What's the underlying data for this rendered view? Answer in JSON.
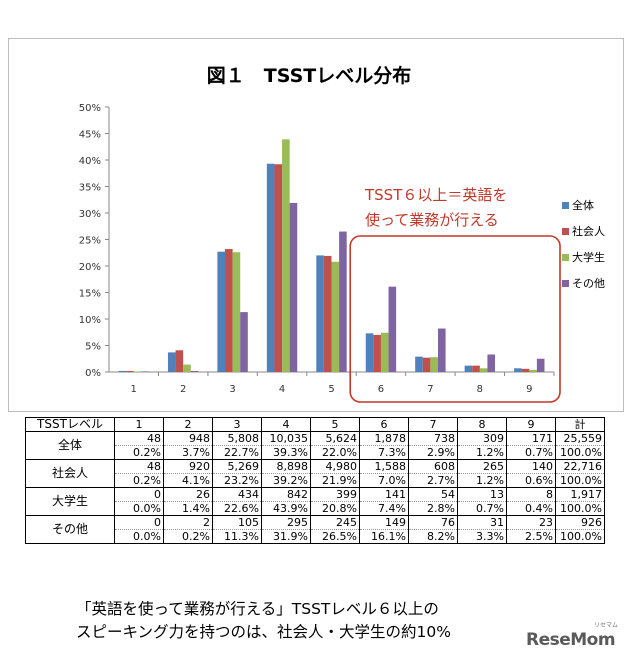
{
  "chart_data": {
    "type": "bar",
    "title": "図１　TSSTレベル分布",
    "categories": [
      "1",
      "2",
      "3",
      "4",
      "5",
      "6",
      "7",
      "8",
      "9"
    ],
    "series": [
      {
        "name": "全体",
        "color": "#4f81bd",
        "values": [
          0.2,
          3.7,
          22.7,
          39.3,
          22.0,
          7.3,
          2.9,
          1.2,
          0.7
        ]
      },
      {
        "name": "社会人",
        "color": "#c0504d",
        "values": [
          0.2,
          4.1,
          23.2,
          39.2,
          21.9,
          7.0,
          2.7,
          1.2,
          0.6
        ]
      },
      {
        "name": "大学生",
        "color": "#9bbb59",
        "values": [
          0.0,
          1.4,
          22.6,
          43.9,
          20.8,
          7.4,
          2.8,
          0.7,
          0.4
        ]
      },
      {
        "name": "その他",
        "color": "#8064a2",
        "values": [
          0.0,
          0.2,
          11.3,
          31.9,
          26.5,
          16.1,
          8.2,
          3.3,
          2.5
        ]
      }
    ],
    "y_ticks": [
      "0%",
      "5%",
      "10%",
      "15%",
      "20%",
      "25%",
      "30%",
      "35%",
      "40%",
      "45%",
      "50%"
    ],
    "ylim": [
      0,
      50
    ],
    "legend_position": "right",
    "annotation": {
      "line1": "TSST６以上＝英語を",
      "line2": "使って業務が行える",
      "color": "#c0392b",
      "highlight_categories": [
        "6",
        "7",
        "8",
        "9"
      ]
    }
  },
  "table": {
    "header": [
      "TSSTレベル",
      "1",
      "2",
      "3",
      "4",
      "5",
      "6",
      "7",
      "8",
      "9",
      "計"
    ],
    "rows": [
      {
        "label": "全体",
        "counts": [
          "48",
          "948",
          "5,808",
          "10,035",
          "5,624",
          "1,878",
          "738",
          "309",
          "171",
          "25,559"
        ],
        "percents": [
          "0.2%",
          "3.7%",
          "22.7%",
          "39.3%",
          "22.0%",
          "7.3%",
          "2.9%",
          "1.2%",
          "0.7%",
          "100.0%"
        ]
      },
      {
        "label": "社会人",
        "counts": [
          "48",
          "920",
          "5,269",
          "8,898",
          "4,980",
          "1,588",
          "608",
          "265",
          "140",
          "22,716"
        ],
        "percents": [
          "0.2%",
          "4.1%",
          "23.2%",
          "39.2%",
          "21.9%",
          "7.0%",
          "2.7%",
          "1.2%",
          "0.6%",
          "100.0%"
        ]
      },
      {
        "label": "大学生",
        "counts": [
          "0",
          "26",
          "434",
          "842",
          "399",
          "141",
          "54",
          "13",
          "8",
          "1,917"
        ],
        "percents": [
          "0.0%",
          "1.4%",
          "22.6%",
          "43.9%",
          "20.8%",
          "7.4%",
          "2.8%",
          "0.7%",
          "0.4%",
          "100.0%"
        ]
      },
      {
        "label": "その他",
        "counts": [
          "0",
          "2",
          "105",
          "295",
          "245",
          "149",
          "76",
          "31",
          "23",
          "926"
        ],
        "percents": [
          "0.0%",
          "0.2%",
          "11.3%",
          "31.9%",
          "26.5%",
          "16.1%",
          "8.2%",
          "3.3%",
          "2.5%",
          "100.0%"
        ]
      }
    ]
  },
  "caption": {
    "line1": "「英語を使って業務が行える」TSSTレベル６以上の",
    "line2": "スピーキング力を持つのは、社会人・大学生の約10%"
  },
  "logo": {
    "text": "ReseMom",
    "small": "リセマム"
  }
}
